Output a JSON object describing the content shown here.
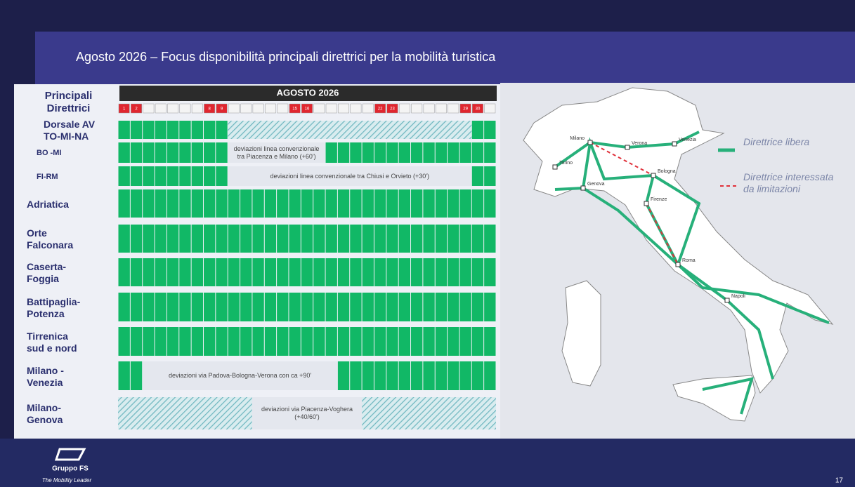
{
  "header": {
    "title": "Agosto 2026 – Focus disponibilità principali direttrici per la mobilità turistica"
  },
  "table": {
    "corner": "Principali Direttrici",
    "month": "AGOSTO 2026",
    "days": [
      "1",
      "2",
      null,
      null,
      null,
      null,
      null,
      "8",
      "9",
      null,
      null,
      null,
      null,
      null,
      "15",
      "16",
      null,
      null,
      null,
      null,
      null,
      "22",
      "23",
      null,
      null,
      null,
      null,
      null,
      "29",
      "30",
      null
    ],
    "rows": [
      {
        "label": "Dorsale AV TO-MI-NA"
      },
      {
        "label": "BO -MI",
        "note": "deviazioni linea convenzionale tra Piacenza e Milano (+60')"
      },
      {
        "label": "FI-RM",
        "note": "deviazioni linea convenzionale tra Chiusi e Orvieto (+30')"
      },
      {
        "label": "Adriatica"
      },
      {
        "label": "Orte Falconara"
      },
      {
        "label": "Caserta-Foggia"
      },
      {
        "label": "Battipaglia-Potenza"
      },
      {
        "label": "Tirrenica sud e nord"
      },
      {
        "label": "Milano - Venezia",
        "note": "deviazioni via Padova-Bologna-Verona con ca +90'"
      },
      {
        "label": "Milano-Genova",
        "note": "deviazioni via Piacenza-Voghera (+40/60')"
      }
    ]
  },
  "legend": [
    {
      "label": "Direttrice libera"
    },
    {
      "label": "Direttrice interessata da limitazioni"
    }
  ],
  "map": {
    "cities": [
      "Milano",
      "Torino",
      "Genova",
      "Verona",
      "Venezia",
      "Bologna",
      "Firenze",
      "Roma",
      "Napoli"
    ]
  },
  "footer": {
    "brand": "Gruppo FS",
    "tagline": "The Mobility Leader",
    "page": "17"
  }
}
